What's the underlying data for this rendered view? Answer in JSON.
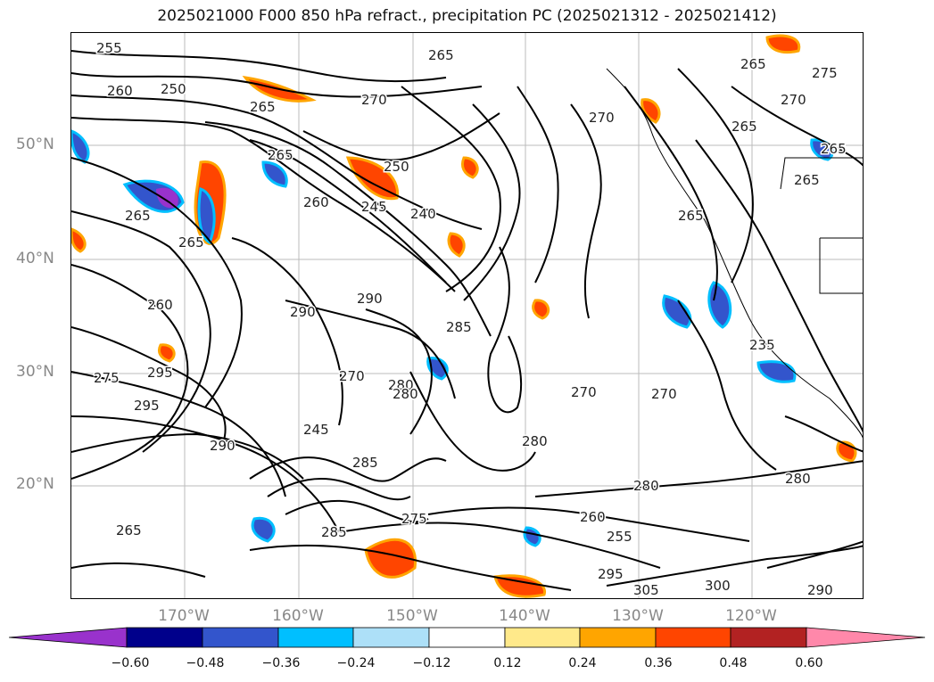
{
  "title": "2025021000 F000 850 hPa refract., precipitation PC (2025021312 - 2025021412)",
  "lat_labels": [
    "50°N",
    "40°N",
    "30°N",
    "20°N"
  ],
  "lon_labels": [
    "170°W",
    "160°W",
    "150°W",
    "140°W",
    "130°W",
    "120°W"
  ],
  "colorbar": {
    "ticks": [
      "−0.60",
      "−0.48",
      "−0.36",
      "−0.24",
      "−0.12",
      "0.12",
      "0.24",
      "0.36",
      "0.48",
      "0.60"
    ],
    "colors": [
      "#9932CC",
      "#00008B",
      "#3355CC",
      "#00BFFF",
      "#ADE0F8",
      "#FFFFFF",
      "#FFE98A",
      "#FFA500",
      "#FF4500",
      "#B22222",
      "#FF88AA"
    ]
  },
  "contour_labels": [
    "255",
    "250",
    "260",
    "265",
    "270",
    "265",
    "265",
    "270",
    "265",
    "275",
    "270",
    "265",
    "265",
    "265",
    "250",
    "260",
    "245",
    "240",
    "265",
    "265",
    "265",
    "260",
    "290",
    "290",
    "285",
    "235",
    "270",
    "295",
    "275",
    "295",
    "280",
    "270",
    "270",
    "280",
    "245",
    "280",
    "290",
    "285",
    "285",
    "275",
    "255",
    "280",
    "300",
    "305",
    "295",
    "260",
    "265",
    "280",
    "290"
  ]
}
